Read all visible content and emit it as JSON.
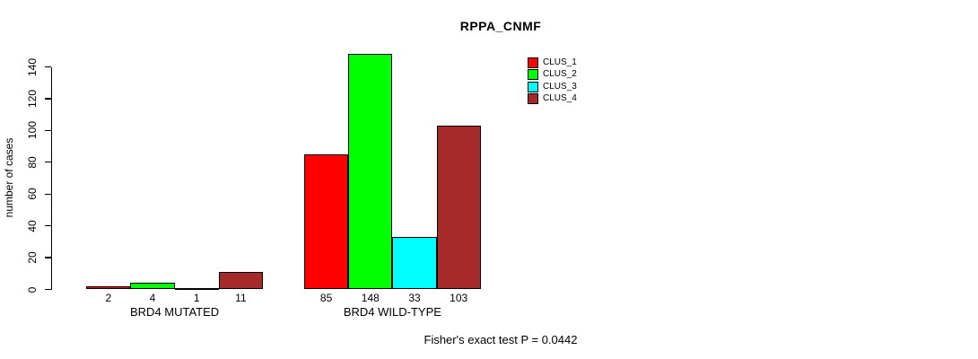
{
  "title": "RPPA_CNMF",
  "y_axis": {
    "label": "number of cases",
    "ticks": [
      0,
      20,
      40,
      60,
      80,
      100,
      120,
      140
    ]
  },
  "footer": "Fisher's exact test P = 0.0442",
  "legend": {
    "items": [
      {
        "label": "CLUS_1",
        "color": "#ff0000"
      },
      {
        "label": "CLUS_2",
        "color": "#00ff00"
      },
      {
        "label": "CLUS_3",
        "color": "#00ffff"
      },
      {
        "label": "CLUS_4",
        "color": "#a52a2a"
      }
    ]
  },
  "chart_data": {
    "type": "bar",
    "title": "RPPA_CNMF",
    "ylabel": "number of cases",
    "ylim": [
      0,
      148
    ],
    "yticks": [
      0,
      20,
      40,
      60,
      80,
      100,
      120,
      140
    ],
    "grid": false,
    "legend_position": "top-right",
    "categories": [
      "BRD4 MUTATED",
      "BRD4 WILD-TYPE"
    ],
    "series": [
      {
        "name": "CLUS_1",
        "color": "#ff0000",
        "values": [
          2,
          85
        ]
      },
      {
        "name": "CLUS_2",
        "color": "#00ff00",
        "values": [
          4,
          148
        ]
      },
      {
        "name": "CLUS_3",
        "color": "#00ffff",
        "values": [
          1,
          33
        ]
      },
      {
        "name": "CLUS_4",
        "color": "#a52a2a",
        "values": [
          11,
          103
        ]
      }
    ],
    "bar_value_labels": [
      [
        2,
        4,
        1,
        11
      ],
      [
        85,
        148,
        33,
        103
      ]
    ],
    "annotation": "Fisher's exact test P = 0.0442"
  }
}
